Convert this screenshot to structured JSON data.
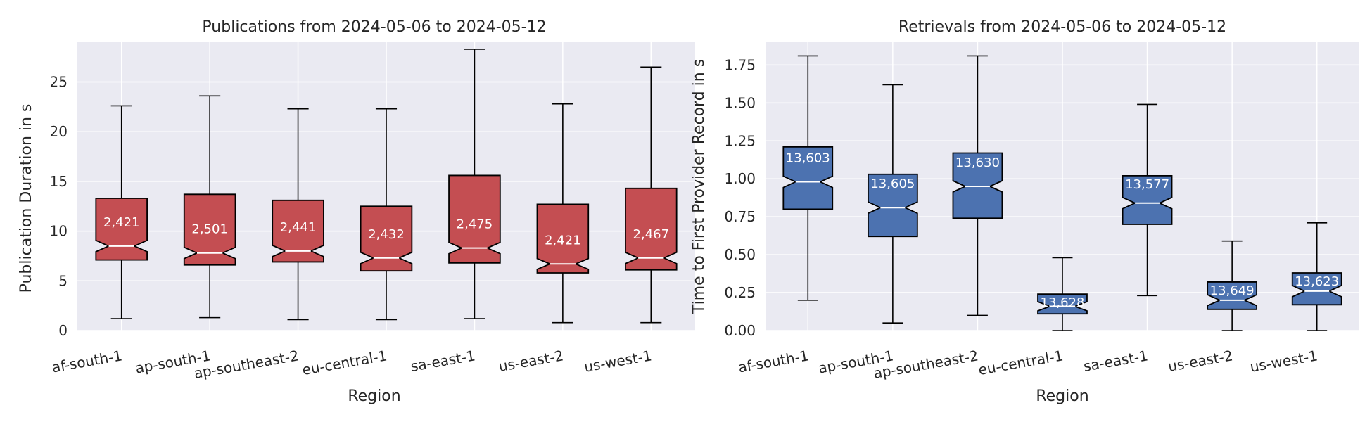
{
  "colors": {
    "background": "#eaeaf2",
    "grid": "#ffffff",
    "pub_box": "#c44e52",
    "ret_box": "#4c72b0",
    "median": "#ffffff",
    "edge": "#000000"
  },
  "chart_data": [
    {
      "type": "boxplot",
      "title": "Publications from 2024-05-06 to 2024-05-12",
      "xlabel": "Region",
      "ylabel": "Publication Duration in s",
      "ylim": [
        0,
        29
      ],
      "yticks": [
        0,
        5,
        10,
        15,
        20,
        25
      ],
      "ytick_labels": [
        "0",
        "5",
        "10",
        "15",
        "20",
        "25"
      ],
      "notched": true,
      "grid": true,
      "categories": [
        "af-south-1",
        "ap-south-1",
        "ap-southeast-2",
        "eu-central-1",
        "sa-east-1",
        "us-east-2",
        "us-west-1"
      ],
      "boxes": [
        {
          "whislo": 1.2,
          "q1": 7.1,
          "med": 8.5,
          "q3": 13.3,
          "whishi": 22.6,
          "count": "2,421"
        },
        {
          "whislo": 1.3,
          "q1": 6.6,
          "med": 7.8,
          "q3": 13.7,
          "whishi": 23.6,
          "count": "2,501"
        },
        {
          "whislo": 1.1,
          "q1": 6.9,
          "med": 8.0,
          "q3": 13.1,
          "whishi": 22.3,
          "count": "2,441"
        },
        {
          "whislo": 1.1,
          "q1": 6.0,
          "med": 7.3,
          "q3": 12.5,
          "whishi": 22.3,
          "count": "2,432"
        },
        {
          "whislo": 1.2,
          "q1": 6.8,
          "med": 8.3,
          "q3": 15.6,
          "whishi": 28.3,
          "count": "2,475"
        },
        {
          "whislo": 0.8,
          "q1": 5.8,
          "med": 6.7,
          "q3": 12.7,
          "whishi": 22.8,
          "count": "2,421"
        },
        {
          "whislo": 0.8,
          "q1": 6.1,
          "med": 7.3,
          "q3": 14.3,
          "whishi": 26.5,
          "count": "2,467"
        }
      ]
    },
    {
      "type": "boxplot",
      "title": "Retrievals from 2024-05-06 to 2024-05-12",
      "xlabel": "Region",
      "ylabel": "Time to First Provider Record in s",
      "ylim": [
        0,
        1.9
      ],
      "yticks": [
        0,
        0.25,
        0.5,
        0.75,
        1.0,
        1.25,
        1.5,
        1.75
      ],
      "ytick_labels": [
        "0.00",
        "0.25",
        "0.50",
        "0.75",
        "1.00",
        "1.25",
        "1.50",
        "1.75"
      ],
      "notched": true,
      "grid": true,
      "categories": [
        "af-south-1",
        "ap-south-1",
        "ap-southeast-2",
        "eu-central-1",
        "sa-east-1",
        "us-east-2",
        "us-west-1"
      ],
      "boxes": [
        {
          "whislo": 0.2,
          "q1": 0.8,
          "med": 0.98,
          "q3": 1.21,
          "whishi": 1.81,
          "count": "13,603"
        },
        {
          "whislo": 0.05,
          "q1": 0.62,
          "med": 0.81,
          "q3": 1.03,
          "whishi": 1.62,
          "count": "13,605"
        },
        {
          "whislo": 0.1,
          "q1": 0.74,
          "med": 0.95,
          "q3": 1.17,
          "whishi": 1.81,
          "count": "13,630"
        },
        {
          "whislo": 0.0,
          "q1": 0.11,
          "med": 0.16,
          "q3": 0.24,
          "whishi": 0.48,
          "count": "13,628"
        },
        {
          "whislo": 0.23,
          "q1": 0.7,
          "med": 0.84,
          "q3": 1.02,
          "whishi": 1.49,
          "count": "13,577"
        },
        {
          "whislo": 0.0,
          "q1": 0.14,
          "med": 0.2,
          "q3": 0.32,
          "whishi": 0.59,
          "count": "13,649"
        },
        {
          "whislo": 0.0,
          "q1": 0.17,
          "med": 0.26,
          "q3": 0.38,
          "whishi": 0.71,
          "count": "13,623"
        }
      ]
    }
  ]
}
